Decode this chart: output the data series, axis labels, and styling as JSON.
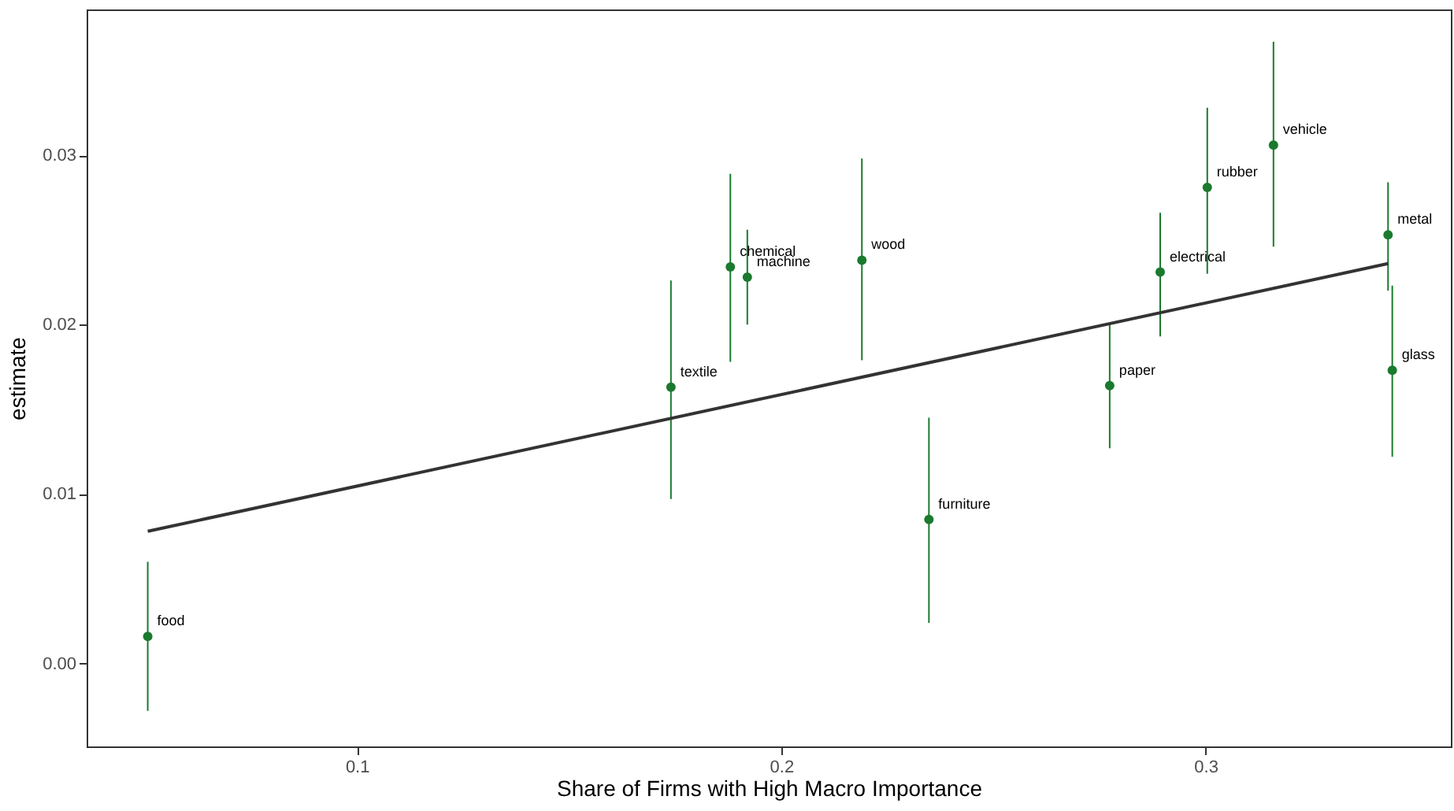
{
  "chart_data": {
    "type": "scatter",
    "xlabel": "Share of Firms with High Macro Importance",
    "ylabel": "estimate",
    "xlim": [
      0.0363,
      0.3578
    ],
    "ylim": [
      -0.0049,
      0.0386
    ],
    "xticks": [
      0.1,
      0.2,
      0.3
    ],
    "yticks": [
      {
        "value": 0,
        "label": "0.00"
      },
      0.01,
      0.02,
      0.03
    ],
    "grid": false,
    "series": [
      {
        "color": "#1a7a2e",
        "marker": "circle",
        "x": [
          0.0507,
          0.174,
          0.188,
          0.192,
          0.219,
          0.2348,
          0.2774,
          0.2893,
          0.3004,
          0.316,
          0.343,
          0.344
        ],
        "values": [
          0.0016,
          0.0163,
          0.0234,
          0.0228,
          0.0238,
          0.0085,
          0.0164,
          0.0231,
          0.0281,
          0.0306,
          0.0253,
          0.0173
        ],
        "errors": [
          [
            -0.0028,
            0.006
          ],
          [
            0.0097,
            0.0226
          ],
          [
            0.0178,
            0.0289
          ],
          [
            0.02,
            0.0256
          ],
          [
            0.0179,
            0.0298
          ],
          [
            0.0024,
            0.0145
          ],
          [
            0.0127,
            0.02
          ],
          [
            0.0193,
            0.0266
          ],
          [
            0.023,
            0.0328
          ],
          [
            0.0246,
            0.0367
          ],
          [
            0.022,
            0.0284
          ],
          [
            0.0122,
            0.0223
          ]
        ]
      },
      {
        "type": "line",
        "color": "#333333",
        "x": [
          0.0507,
          0.343
        ],
        "values": [
          0.0078,
          0.0236
        ]
      }
    ],
    "annotations": [
      {
        "text": "food",
        "x": 0.0507,
        "y": 0.0016
      },
      {
        "text": "textile",
        "x": 0.174,
        "y": 0.0163
      },
      {
        "text": "chemical",
        "x": 0.188,
        "y": 0.0234
      },
      {
        "text": "machine",
        "x": 0.192,
        "y": 0.0228
      },
      {
        "text": "wood",
        "x": 0.219,
        "y": 0.0238
      },
      {
        "text": "furniture",
        "x": 0.2348,
        "y": 0.0085
      },
      {
        "text": "paper",
        "x": 0.2774,
        "y": 0.0164
      },
      {
        "text": "electrical",
        "x": 0.2893,
        "y": 0.0231
      },
      {
        "text": "rubber",
        "x": 0.3004,
        "y": 0.0281
      },
      {
        "text": "vehicle",
        "x": 0.316,
        "y": 0.0306
      },
      {
        "text": "metal",
        "x": 0.343,
        "y": 0.0253
      },
      {
        "text": "glass",
        "x": 0.344,
        "y": 0.0173
      }
    ]
  }
}
